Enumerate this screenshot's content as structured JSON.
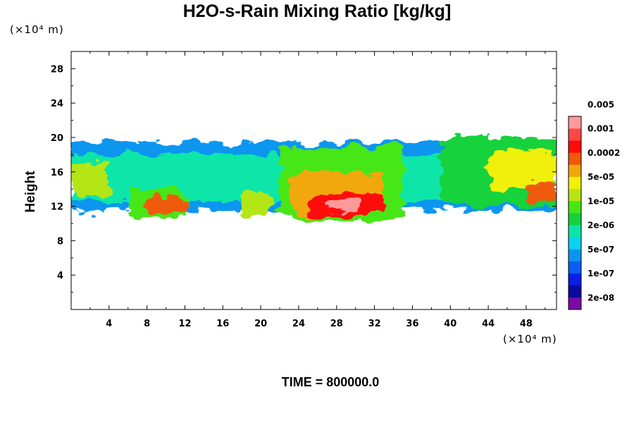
{
  "chart_data": {
    "type": "heatmap",
    "title": "H2O-s-Rain Mixing Ratio [kg/kg]",
    "ylabel": "Height",
    "x_unit": "(×10⁴ m)",
    "y_unit": "(×10⁴ m)",
    "time_label": "TIME = 800000.0",
    "xlim": [
      0,
      51.2
    ],
    "ylim": [
      0,
      30
    ],
    "x_ticks": [
      4,
      8,
      12,
      16,
      20,
      24,
      28,
      32,
      36,
      40,
      44,
      48
    ],
    "y_ticks": [
      4,
      8,
      12,
      16,
      20,
      24,
      28
    ],
    "colorbar": {
      "colors": [
        "#7a0aa5",
        "#0a0a9c",
        "#0a1ee6",
        "#0a5cf2",
        "#0a96f0",
        "#0ad2f0",
        "#0ae6a8",
        "#14d23c",
        "#46e614",
        "#b4e614",
        "#f0f00a",
        "#f0a80a",
        "#f05a0a",
        "#ff0a0a",
        "#ff4646",
        "#ff9a9a"
      ],
      "labels": [
        "2e-08",
        "1e-07",
        "5e-07",
        "2e-06",
        "1e-05",
        "5e-05",
        "0.0002",
        "0.001",
        "0.005"
      ]
    },
    "regions": [
      {
        "x0": 0,
        "x1": 51.2,
        "y0": 11.5,
        "y1": 19.5,
        "level": 4
      },
      {
        "x0": 0,
        "x1": 51.2,
        "y0": 12.5,
        "y1": 18,
        "level": 6
      },
      {
        "x0": 0,
        "x1": 4,
        "y0": 13,
        "y1": 17,
        "level": 9
      },
      {
        "x0": 6,
        "x1": 12,
        "y0": 10.5,
        "y1": 14,
        "level": 8
      },
      {
        "x0": 8,
        "x1": 12,
        "y0": 11,
        "y1": 13,
        "level": 12
      },
      {
        "x0": 18,
        "x1": 21,
        "y0": 10.5,
        "y1": 14,
        "level": 9
      },
      {
        "x0": 22,
        "x1": 35,
        "y0": 10.5,
        "y1": 19,
        "level": 8
      },
      {
        "x0": 23,
        "x1": 33,
        "y0": 11,
        "y1": 16,
        "level": 11
      },
      {
        "x0": 25,
        "x1": 33,
        "y0": 11,
        "y1": 13.5,
        "level": 13
      },
      {
        "x0": 27,
        "x1": 31,
        "y0": 11.5,
        "y1": 12.8,
        "level": 15
      },
      {
        "x0": 39,
        "x1": 51.2,
        "y0": 12,
        "y1": 20,
        "level": 7
      },
      {
        "x0": 44,
        "x1": 51.2,
        "y0": 14,
        "y1": 18.5,
        "level": 10
      },
      {
        "x0": 48,
        "x1": 51.2,
        "y0": 12.5,
        "y1": 15,
        "level": 12
      }
    ]
  }
}
